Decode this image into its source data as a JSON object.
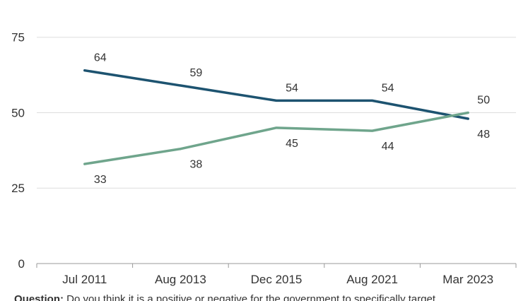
{
  "chart_data": {
    "type": "line",
    "categories": [
      "Jul 2011",
      "Aug 2013",
      "Dec 2015",
      "Aug 2021",
      "Mar 2023"
    ],
    "series": [
      {
        "values": [
          64,
          59,
          54,
          54,
          48
        ],
        "color": "#1d5370"
      },
      {
        "values": [
          33,
          38,
          45,
          44,
          50
        ],
        "color": "#6fa58c"
      }
    ],
    "yticks": [
      0,
      25,
      50,
      75
    ],
    "ylim": [
      0,
      85
    ],
    "grid": true,
    "gridColor": "#dddddd",
    "axisColor": "#999999"
  },
  "caption": {
    "label": "Question:",
    "text": " Do you think it is a positive or negative for the government to specifically target"
  }
}
